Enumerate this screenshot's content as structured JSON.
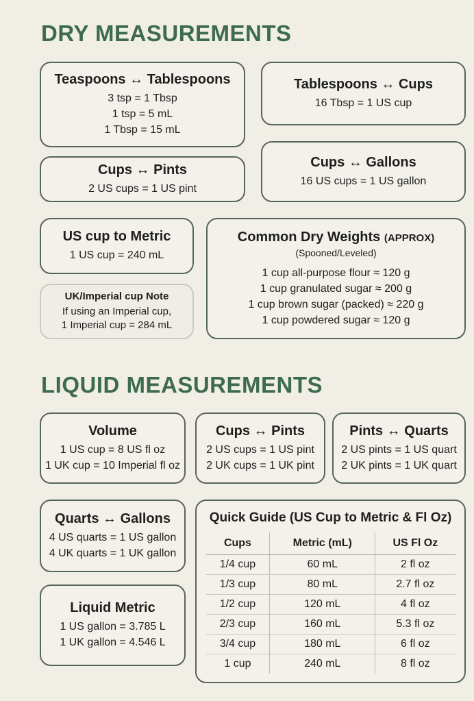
{
  "dry": {
    "heading": "DRY MEASUREMENTS",
    "tsp_tbsp": {
      "title": "Teaspoons ↔ Tablespoons",
      "lines": [
        "3 tsp = 1 Tbsp",
        "1 tsp = 5 mL",
        "1 Tbsp = 15 mL"
      ]
    },
    "tbsp_cups": {
      "title": "Tablespoons ↔ Cups",
      "lines": [
        "16 Tbsp = 1 US cup"
      ]
    },
    "cups_pints": {
      "title": "Cups ↔ Pints",
      "lines": [
        "2 US cups = 1 US pint"
      ]
    },
    "cups_gallons": {
      "title": "Cups ↔ Gallons",
      "lines": [
        "16 US cups = 1 US gallon"
      ]
    },
    "cup_metric": {
      "title": "US cup to Metric",
      "lines": [
        "1 US cup = 240 mL"
      ]
    },
    "uk_note": {
      "title": "UK/Imperial cup Note",
      "lines": [
        "If using an Imperial cup,",
        "1 Imperial cup = 284 mL"
      ]
    },
    "weights": {
      "title": "Common Dry Weights",
      "title_suffix": "(APPROX)",
      "subtitle": "(Spooned/Leveled)",
      "lines": [
        "1 cup all-purpose flour ≈ 120 g",
        "1 cup granulated sugar ≈ 200 g",
        "1 cup brown sugar (packed) ≈ 220 g",
        "1 cup powdered sugar ≈ 120 g"
      ]
    }
  },
  "liquid": {
    "heading": "LIQUID MEASUREMENTS",
    "volume": {
      "title": "Volume",
      "lines": [
        "1 US cup = 8 US fl oz",
        "1 UK cup = 10 Imperial fl oz"
      ]
    },
    "cups_pints": {
      "title": "Cups ↔ Pints",
      "lines": [
        "2 US cups = 1 US pint",
        "2 UK cups = 1 UK pint"
      ]
    },
    "pints_quarts": {
      "title": "Pints ↔ Quarts",
      "lines": [
        "2 US pints = 1 US quart",
        "2 UK pints = 1 UK quart"
      ]
    },
    "quarts_gallons": {
      "title": "Quarts ↔ Gallons",
      "lines": [
        "4 US quarts = 1 US gallon",
        "4 UK quarts = 1 UK gallon"
      ]
    },
    "metric": {
      "title": "Liquid Metric",
      "lines": [
        "1 US gallon = 3.785 L",
        "1 UK gallon = 4.546 L"
      ]
    },
    "guide": {
      "title": "Quick Guide (US Cup to Metric & Fl Oz)",
      "headers": [
        "Cups",
        "Metric (mL)",
        "US Fl Oz"
      ],
      "rows": [
        [
          "1/4 cup",
          "60 mL",
          "2 fl oz"
        ],
        [
          "1/3 cup",
          "80 mL",
          "2.7 fl oz"
        ],
        [
          "1/2 cup",
          "120 mL",
          "4 fl oz"
        ],
        [
          "2/3 cup",
          "160 mL",
          "5.3 fl oz"
        ],
        [
          "3/4 cup",
          "180 mL",
          "6 fl oz"
        ],
        [
          "1 cup",
          "240 mL",
          "8 fl oz"
        ]
      ]
    }
  }
}
